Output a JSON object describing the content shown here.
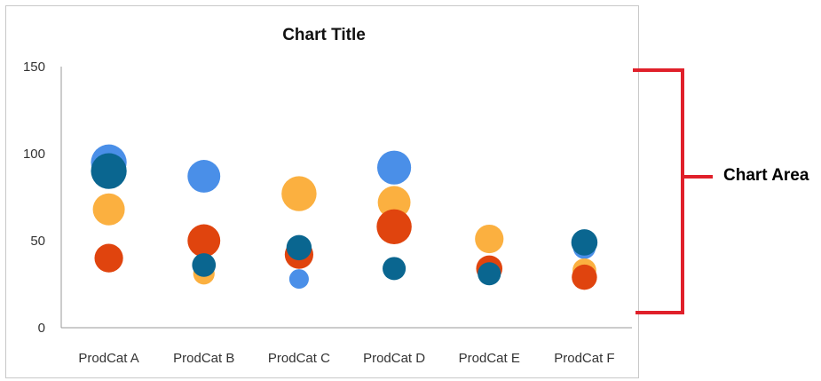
{
  "chart_data": {
    "type": "bubble",
    "title": "Chart Title",
    "categories": [
      "ProdCat A",
      "ProdCat B",
      "ProdCat C",
      "ProdCat D",
      "ProdCat E",
      "ProdCat F"
    ],
    "ylim": [
      0,
      150
    ],
    "yticks": [
      0,
      50,
      100,
      150
    ],
    "grid": false,
    "legend": "none",
    "series": [
      {
        "color": "#4a8fe8",
        "points": [
          {
            "category": "ProdCat A",
            "y": 95,
            "size": 5
          },
          {
            "category": "ProdCat B",
            "y": 87,
            "size": 4.2
          },
          {
            "category": "ProdCat C",
            "y": 28,
            "size": 1.5
          },
          {
            "category": "ProdCat D",
            "y": 92,
            "size": 4.5
          },
          {
            "category": "ProdCat E",
            "y": 31,
            "size": 1.5
          },
          {
            "category": "ProdCat F",
            "y": 46,
            "size": 2
          }
        ]
      },
      {
        "color": "#fbb040",
        "points": [
          {
            "category": "ProdCat A",
            "y": 68,
            "size": 4
          },
          {
            "category": "ProdCat B",
            "y": 31,
            "size": 1.8
          },
          {
            "category": "ProdCat C",
            "y": 77,
            "size": 4.8
          },
          {
            "category": "ProdCat D",
            "y": 72,
            "size": 4.2
          },
          {
            "category": "ProdCat E",
            "y": 51,
            "size": 3.2
          },
          {
            "category": "ProdCat F",
            "y": 33,
            "size": 2.2
          }
        ]
      },
      {
        "color": "#e0440e",
        "points": [
          {
            "category": "ProdCat A",
            "y": 40,
            "size": 3.2
          },
          {
            "category": "ProdCat B",
            "y": 50,
            "size": 4.2
          },
          {
            "category": "ProdCat C",
            "y": 42,
            "size": 3.2
          },
          {
            "category": "ProdCat D",
            "y": 58,
            "size": 4.8
          },
          {
            "category": "ProdCat E",
            "y": 34,
            "size": 2.7
          },
          {
            "category": "ProdCat F",
            "y": 29,
            "size": 2.5
          }
        ]
      },
      {
        "color": "#0a6690",
        "points": [
          {
            "category": "ProdCat A",
            "y": 90,
            "size": 5
          },
          {
            "category": "ProdCat B",
            "y": 36,
            "size": 2.2
          },
          {
            "category": "ProdCat C",
            "y": 46,
            "size": 2.5
          },
          {
            "category": "ProdCat D",
            "y": 34,
            "size": 2.1
          },
          {
            "category": "ProdCat E",
            "y": 31,
            "size": 2.1
          },
          {
            "category": "ProdCat F",
            "y": 49,
            "size": 2.7
          }
        ]
      }
    ]
  },
  "annotation": {
    "label": "Chart Area",
    "color": "#e0202a"
  }
}
